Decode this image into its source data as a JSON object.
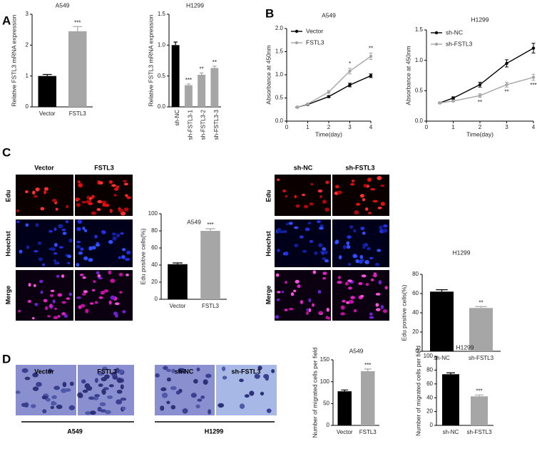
{
  "panel_labels": [
    "A",
    "B",
    "C",
    "D"
  ],
  "images": {
    "edu_a549": {
      "columns": [
        "Vector",
        "FSTL3"
      ],
      "rows": [
        "Edu",
        "Hoechst",
        "Merge"
      ]
    },
    "edu_h1299": {
      "columns": [
        "sh-NC",
        "sh-FSTL3"
      ],
      "rows": [
        "Edu",
        "Hoechst",
        "Merge"
      ]
    },
    "transwell": [
      {
        "columns": [
          "Vector",
          "FSTL3"
        ],
        "caption": "A549"
      },
      {
        "columns": [
          "sh-NC",
          "sh-FSTL3"
        ],
        "caption": "H1299"
      }
    ]
  },
  "chart_data": [
    {
      "type": "bar",
      "title": "A549",
      "ylabel": "Relative FSTL3 mRNA expression",
      "categories": [
        "Vector",
        "FSTL3"
      ],
      "values": [
        1.0,
        2.45
      ],
      "errors": [
        0.05,
        0.15
      ],
      "colors": [
        "#000000",
        "#a6a6a6"
      ],
      "significance": [
        null,
        "***"
      ],
      "ylim": [
        0,
        3
      ],
      "yticks": [
        0,
        1,
        2,
        3
      ]
    },
    {
      "type": "bar",
      "title": "H1299",
      "ylabel": "Relative FSTL3 mRNA expression",
      "categories": [
        "sh-NC",
        "sh-FSTL3-1",
        "sh-FSTL3-2",
        "sh-FSTL3-3"
      ],
      "values": [
        1.0,
        0.35,
        0.52,
        0.63
      ],
      "errors": [
        0.05,
        0.02,
        0.03,
        0.03
      ],
      "colors": [
        "#000000",
        "#a6a6a6",
        "#a6a6a6",
        "#a6a6a6"
      ],
      "significance": [
        null,
        "***",
        "**",
        "**"
      ],
      "xtick_rotation": 90,
      "ylim": [
        0,
        1.5
      ],
      "yticks": [
        {
          "value": 0,
          "label": "0.0"
        },
        {
          "value": 0.5,
          "label": "0.5"
        },
        {
          "value": 1,
          "label": "1.0"
        },
        {
          "value": 1.5,
          "label": "1.5"
        }
      ]
    },
    {
      "type": "line",
      "title": "A549",
      "xlabel": "Time(day)",
      "ylabel": "Absorbance at 450nm",
      "x": [
        0.5,
        1,
        2,
        3,
        4
      ],
      "legend": "upper left",
      "series": [
        {
          "name": "Vector",
          "color": "#000000",
          "values": [
            0.3,
            0.36,
            0.53,
            0.78,
            0.98
          ],
          "errors": [
            0.01,
            0.01,
            0.02,
            0.04,
            0.04
          ]
        },
        {
          "name": "FSTL3",
          "color": "#a6a6a6",
          "values": [
            0.3,
            0.37,
            0.63,
            1.08,
            1.4
          ],
          "errors": [
            0.01,
            0.01,
            0.03,
            0.06,
            0.07
          ],
          "significance": [
            null,
            null,
            null,
            "*",
            "**"
          ]
        }
      ],
      "xlim": [
        0,
        4
      ],
      "xticks": [
        0,
        1,
        2,
        3,
        4
      ],
      "ylim": [
        0,
        2
      ],
      "yticks": [
        {
          "value": 0,
          "label": "0.0"
        },
        {
          "value": 0.5,
          "label": "0.5"
        },
        {
          "value": 1,
          "label": "1.0"
        },
        {
          "value": 1.5,
          "label": "1.5"
        },
        {
          "value": 2,
          "label": "2.0"
        }
      ]
    },
    {
      "type": "line",
      "title": "H1299",
      "xlabel": "Time(day)",
      "ylabel": "Absorbance at 450nm",
      "x": [
        0.5,
        1,
        2,
        3,
        4
      ],
      "legend": "upper left",
      "series": [
        {
          "name": "sh-NC",
          "color": "#000000",
          "values": [
            0.3,
            0.38,
            0.6,
            0.95,
            1.2
          ],
          "errors": [
            0.01,
            0.02,
            0.04,
            0.06,
            0.08
          ]
        },
        {
          "name": "sh-FSTL3",
          "color": "#a6a6a6",
          "values": [
            0.3,
            0.33,
            0.42,
            0.6,
            0.72
          ],
          "errors": [
            0.01,
            0.01,
            0.03,
            0.04,
            0.05
          ],
          "significance": [
            null,
            null,
            "**",
            "**",
            "***"
          ]
        }
      ],
      "xlim": [
        0,
        4
      ],
      "xticks": [
        0,
        1,
        2,
        3,
        4
      ],
      "ylim": [
        0,
        1.5
      ],
      "yticks": [
        {
          "value": 0,
          "label": "0.0"
        },
        {
          "value": 0.5,
          "label": "0.5"
        },
        {
          "value": 1,
          "label": "1.0"
        },
        {
          "value": 1.5,
          "label": "1.5"
        }
      ]
    },
    {
      "type": "bar",
      "title": "A549",
      "ylabel": "Edu positive cells(%)",
      "categories": [
        "Vector",
        "FSTL3"
      ],
      "values": [
        41,
        80
      ],
      "errors": [
        1.5,
        2.5
      ],
      "colors": [
        "#000000",
        "#a6a6a6"
      ],
      "significance": [
        null,
        "***"
      ],
      "ylim": [
        0,
        100
      ],
      "yticks": [
        0,
        20,
        40,
        60,
        80,
        100
      ]
    },
    {
      "type": "bar",
      "title": "H1299",
      "ylabel": "Edu positive cells(%)",
      "categories": [
        "sh-NC",
        "sh-FSTL3"
      ],
      "values": [
        62,
        45
      ],
      "errors": [
        2,
        1.5
      ],
      "colors": [
        "#000000",
        "#a6a6a6"
      ],
      "significance": [
        null,
        "**"
      ],
      "ylim": [
        0,
        80
      ],
      "yticks": [
        0,
        20,
        40,
        60,
        80
      ]
    },
    {
      "type": "bar",
      "title": "A549",
      "ylabel": "Number of migrated cells per field",
      "categories": [
        "Vector",
        "FSTL3"
      ],
      "values": [
        78,
        124
      ],
      "errors": [
        3,
        5
      ],
      "colors": [
        "#000000",
        "#a6a6a6"
      ],
      "significance": [
        null,
        "***"
      ],
      "ylim": [
        0,
        150
      ],
      "yticks": [
        0,
        50,
        100,
        150
      ]
    },
    {
      "type": "bar",
      "title": "H1299",
      "ylabel": "Number of migrated cells per field",
      "categories": [
        "sh-NC",
        "sh-FSTL3"
      ],
      "values": [
        74,
        42
      ],
      "errors": [
        2,
        2
      ],
      "colors": [
        "#000000",
        "#a6a6a6"
      ],
      "significance": [
        null,
        "***"
      ],
      "ylim": [
        0,
        100
      ],
      "yticks": [
        0,
        20,
        40,
        60,
        80,
        100
      ]
    }
  ]
}
